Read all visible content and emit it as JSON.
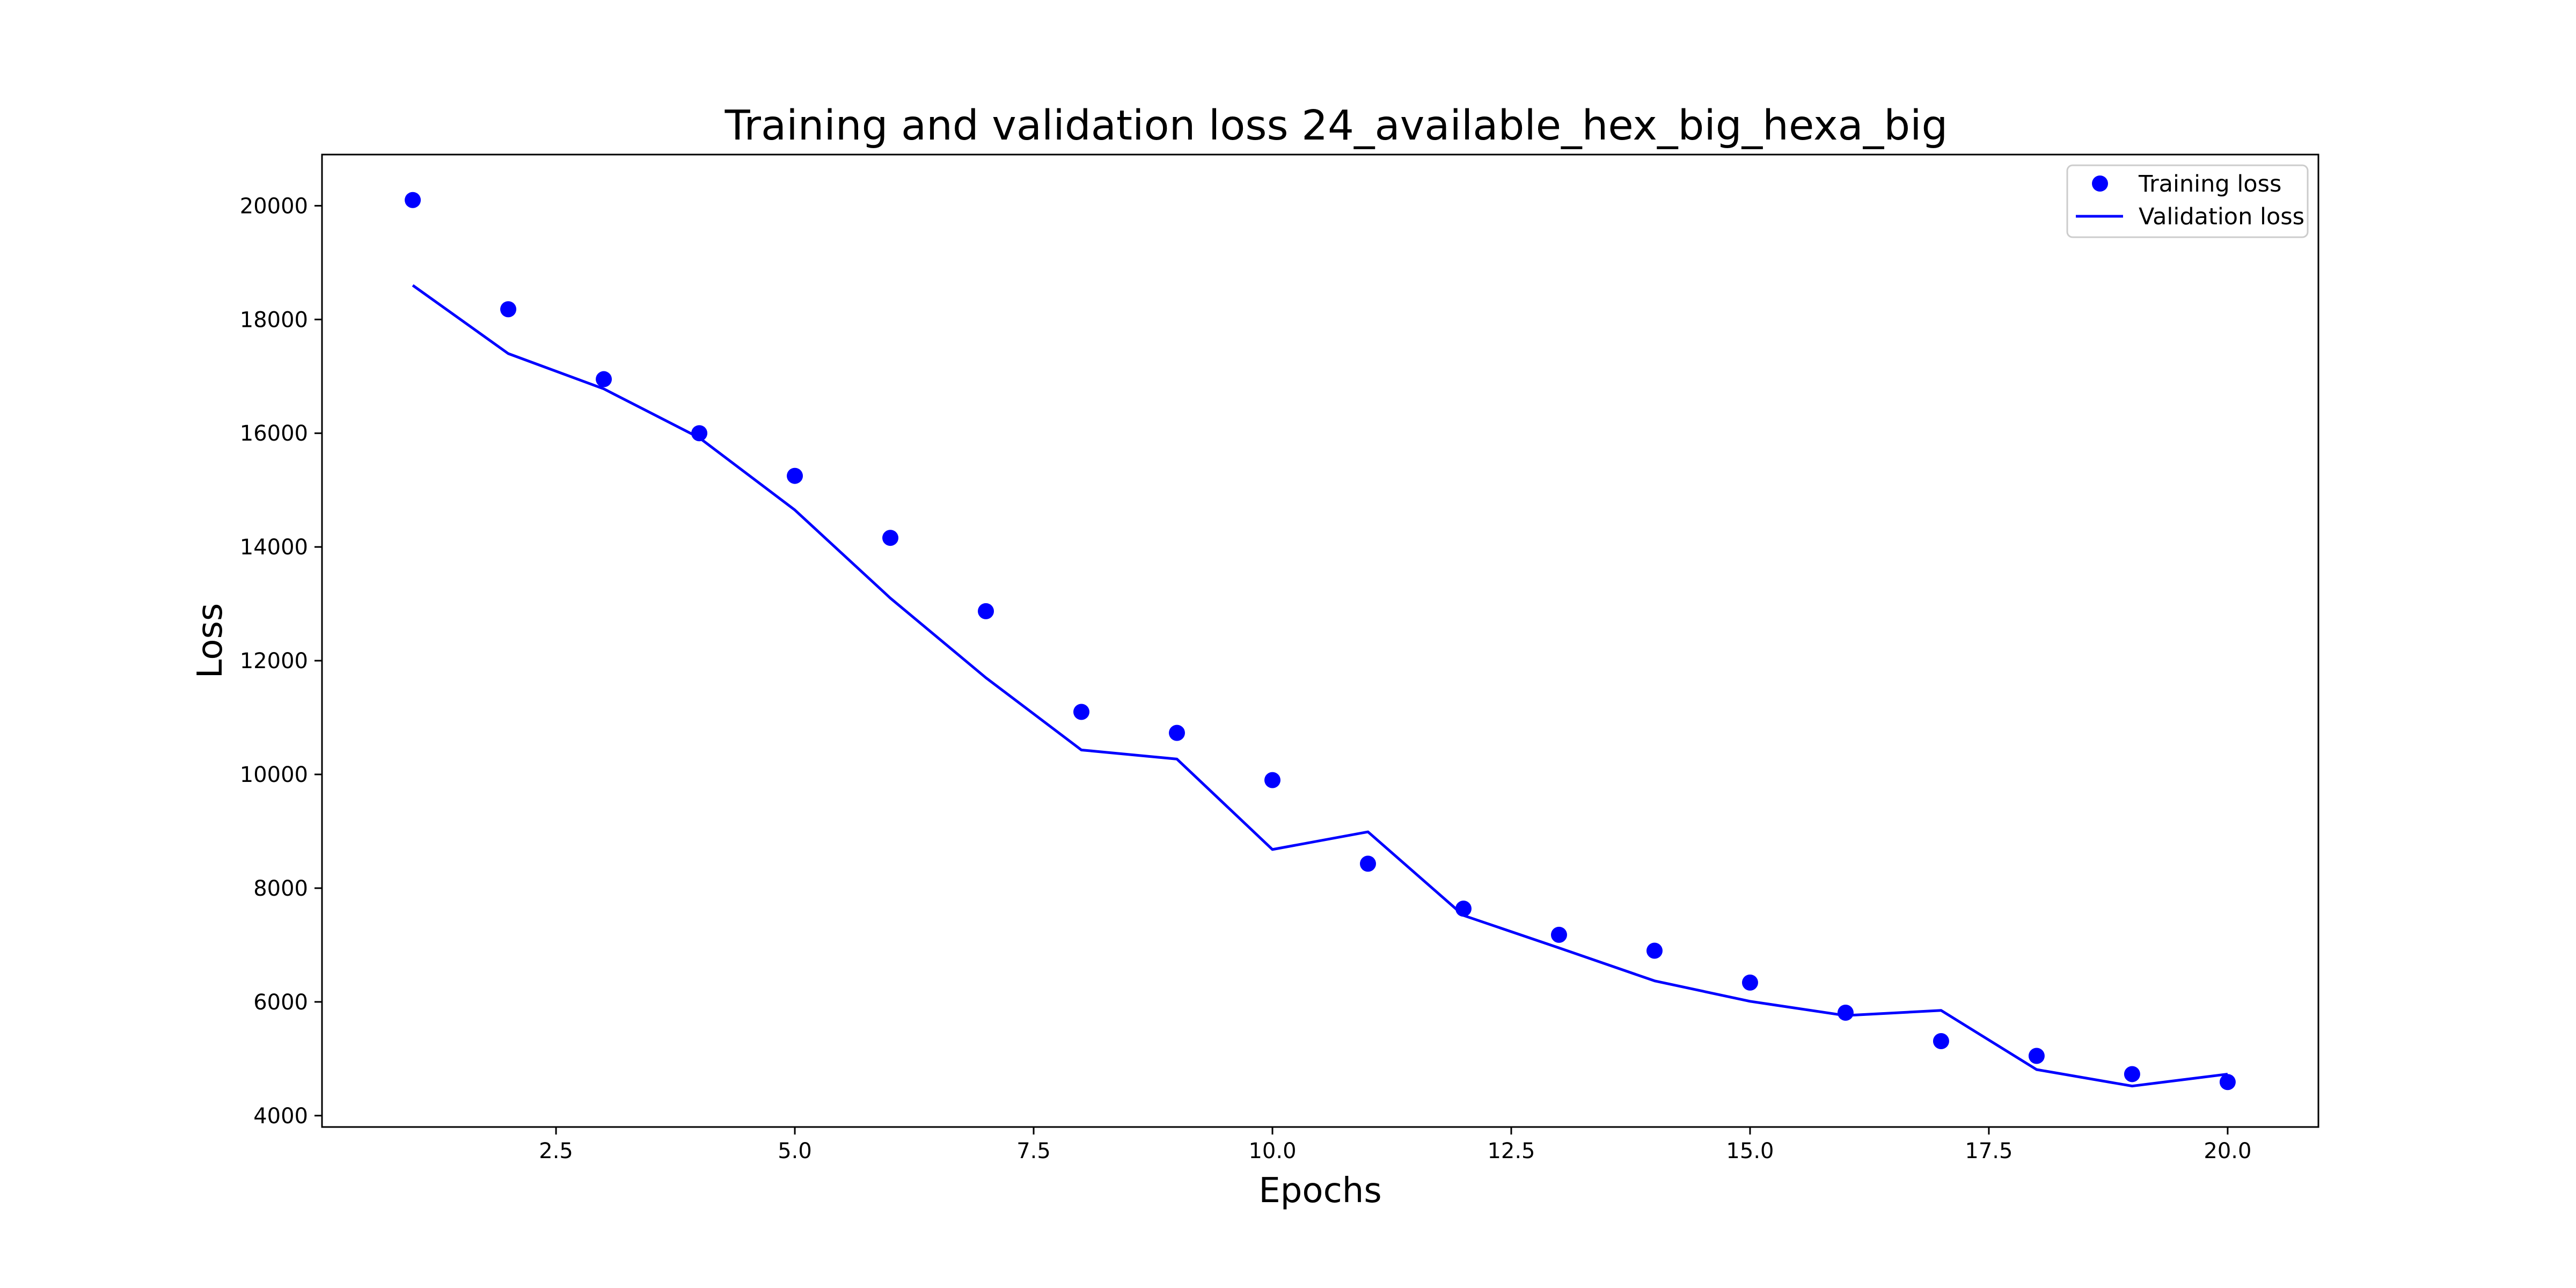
{
  "chart_data": {
    "type": "line",
    "title": "Training and validation loss 24_available_hex_big_hexa_big",
    "xlabel": "Epochs",
    "ylabel": "Loss",
    "xlim": [
      0.05,
      20.95
    ],
    "ylim": [
      3800,
      20900
    ],
    "xticks": [
      2.5,
      5.0,
      7.5,
      10.0,
      12.5,
      15.0,
      17.5,
      20.0
    ],
    "xtick_labels": [
      "2.5",
      "5.0",
      "7.5",
      "10.0",
      "12.5",
      "15.0",
      "17.5",
      "20.0"
    ],
    "yticks": [
      4000,
      6000,
      8000,
      10000,
      12000,
      14000,
      16000,
      18000,
      20000
    ],
    "ytick_labels": [
      "4000",
      "6000",
      "8000",
      "10000",
      "12000",
      "14000",
      "16000",
      "18000",
      "20000"
    ],
    "grid": false,
    "legend_position": "top-right",
    "x": [
      1,
      2,
      3,
      4,
      5,
      6,
      7,
      8,
      9,
      10,
      11,
      12,
      13,
      14,
      15,
      16,
      17,
      18,
      19,
      20
    ],
    "series": [
      {
        "name": "Training loss",
        "style": "dots",
        "color": "#0000ff",
        "values": [
          20100,
          18180,
          16950,
          16000,
          15250,
          14160,
          12870,
          11100,
          10730,
          9900,
          8430,
          7640,
          7180,
          6900,
          6340,
          5810,
          5310,
          5050,
          4730,
          4590
        ]
      },
      {
        "name": "Validation loss",
        "style": "line",
        "color": "#0000ff",
        "values": [
          18600,
          17400,
          16780,
          15920,
          14650,
          13100,
          11700,
          10430,
          10270,
          8680,
          8990,
          7520,
          6950,
          6370,
          6010,
          5760,
          5850,
          4810,
          4520,
          4730
        ]
      }
    ]
  }
}
